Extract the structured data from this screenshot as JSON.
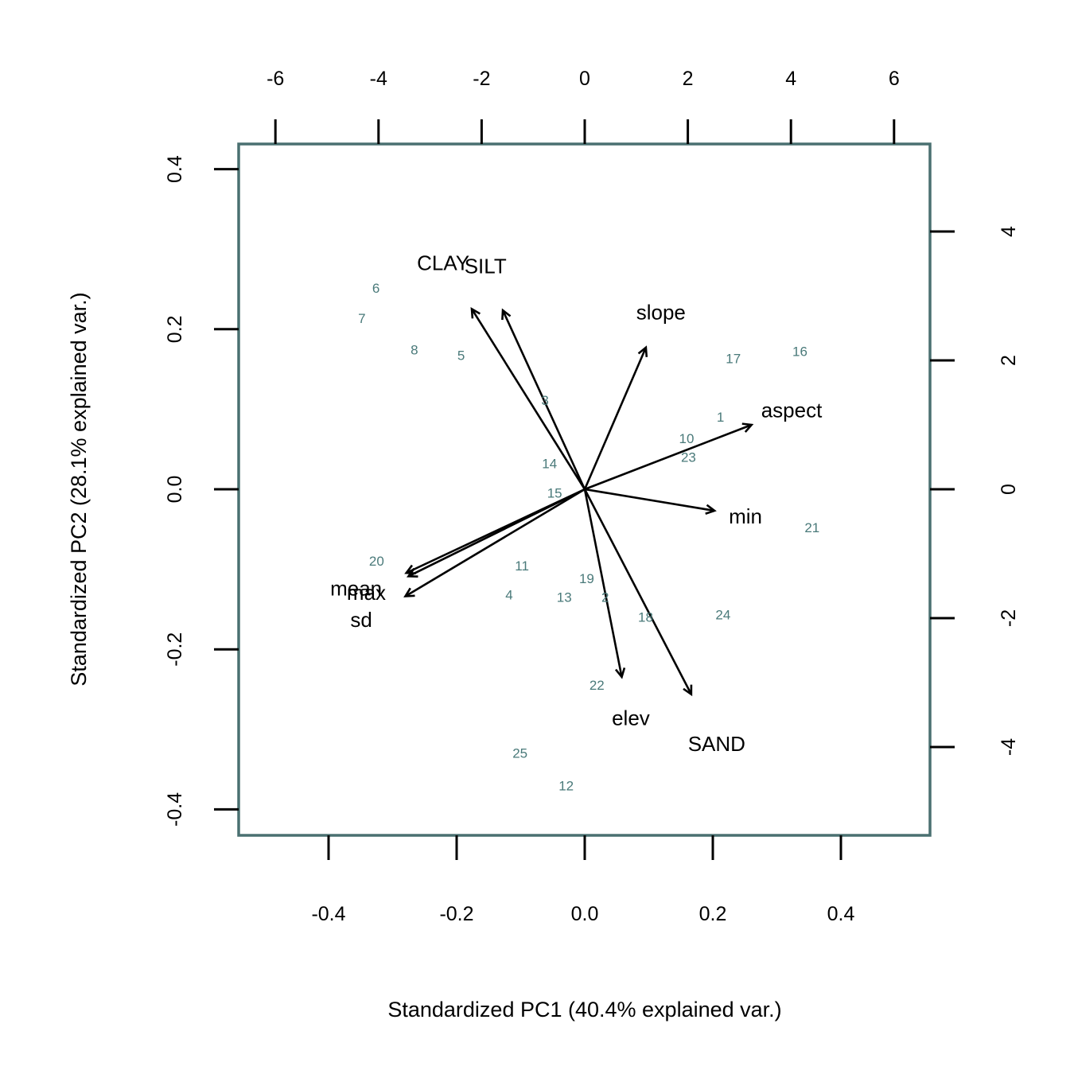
{
  "chart_data": {
    "type": "scatter",
    "subtype": "biplot",
    "xlabel": "Standardized PC1 (40.4% explained var.)",
    "ylabel": "Standardized PC2 (28.1% explained var.)",
    "xlim": [
      -0.54,
      0.54
    ],
    "ylim": [
      -0.432,
      0.43
    ],
    "x_ticks": [
      "-0.4",
      "-0.2",
      "0.0",
      "0.2",
      "0.4"
    ],
    "y_ticks": [
      "-0.4",
      "-0.2",
      "0.0",
      "0.2",
      "0.4"
    ],
    "top_ticks": [
      "-6",
      "-4",
      "-2",
      "0",
      "2",
      "4",
      "6"
    ],
    "right_ticks": [
      "-4",
      "-2",
      "0",
      "2",
      "4"
    ],
    "loading_scale": 12.3,
    "colors": {
      "observations": "#4a7a7a",
      "arrows": "#000000",
      "frame": "#4a7071"
    },
    "observations": [
      {
        "label": "1",
        "x": 0.212,
        "y": 0.09
      },
      {
        "label": "2",
        "x": 0.032,
        "y": -0.135
      },
      {
        "label": "3",
        "x": -0.062,
        "y": 0.111
      },
      {
        "label": "4",
        "x": -0.118,
        "y": -0.132
      },
      {
        "label": "5",
        "x": -0.193,
        "y": 0.167
      },
      {
        "label": "6",
        "x": -0.326,
        "y": 0.251
      },
      {
        "label": "7",
        "x": -0.348,
        "y": 0.213
      },
      {
        "label": "8",
        "x": -0.266,
        "y": 0.174
      },
      {
        "label": "10",
        "x": 0.159,
        "y": 0.063
      },
      {
        "label": "11",
        "x": -0.098,
        "y": -0.096
      },
      {
        "label": "12",
        "x": -0.029,
        "y": -0.371
      },
      {
        "label": "13",
        "x": -0.032,
        "y": -0.135
      },
      {
        "label": "14",
        "x": -0.055,
        "y": 0.032
      },
      {
        "label": "15",
        "x": -0.047,
        "y": -0.005
      },
      {
        "label": "16",
        "x": 0.336,
        "y": 0.172
      },
      {
        "label": "17",
        "x": 0.232,
        "y": 0.163
      },
      {
        "label": "18",
        "x": 0.095,
        "y": -0.16
      },
      {
        "label": "19",
        "x": 0.003,
        "y": -0.112
      },
      {
        "label": "20",
        "x": -0.325,
        "y": -0.09
      },
      {
        "label": "21",
        "x": 0.355,
        "y": -0.048
      },
      {
        "label": "22",
        "x": 0.019,
        "y": -0.245
      },
      {
        "label": "23",
        "x": 0.162,
        "y": 0.04
      },
      {
        "label": "24",
        "x": 0.216,
        "y": -0.157
      },
      {
        "label": "25",
        "x": -0.101,
        "y": -0.33
      }
    ],
    "variables": [
      {
        "label": "CLAY",
        "x": -0.1764,
        "y": 0.2253,
        "lx": -0.221,
        "ly": 0.283
      },
      {
        "label": "SILT",
        "x": -0.1279,
        "y": 0.2236,
        "lx": -0.155,
        "ly": 0.279
      },
      {
        "label": "slope",
        "x": 0.0955,
        "y": 0.1771,
        "lx": 0.119,
        "ly": 0.221
      },
      {
        "label": "aspect",
        "x": 0.2605,
        "y": 0.0805,
        "lx": 0.323,
        "ly": 0.099
      },
      {
        "label": "min",
        "x": 0.2026,
        "y": -0.0268,
        "lx": 0.251,
        "ly": -0.034
      },
      {
        "label": "SAND",
        "x": 0.1663,
        "y": -0.2561,
        "lx": 0.206,
        "ly": -0.318
      },
      {
        "label": "elev",
        "x": 0.0578,
        "y": -0.2345,
        "lx": 0.072,
        "ly": -0.286
      },
      {
        "label": "mean",
        "x": -0.2786,
        "y": -0.1045,
        "lx": -0.357,
        "ly": -0.124
      },
      {
        "label": "max",
        "x": -0.2752,
        "y": -0.1087,
        "lx": -0.341,
        "ly": -0.129
      },
      {
        "label": "sd",
        "x": -0.2801,
        "y": -0.1337,
        "lx": -0.349,
        "ly": -0.163
      }
    ]
  }
}
